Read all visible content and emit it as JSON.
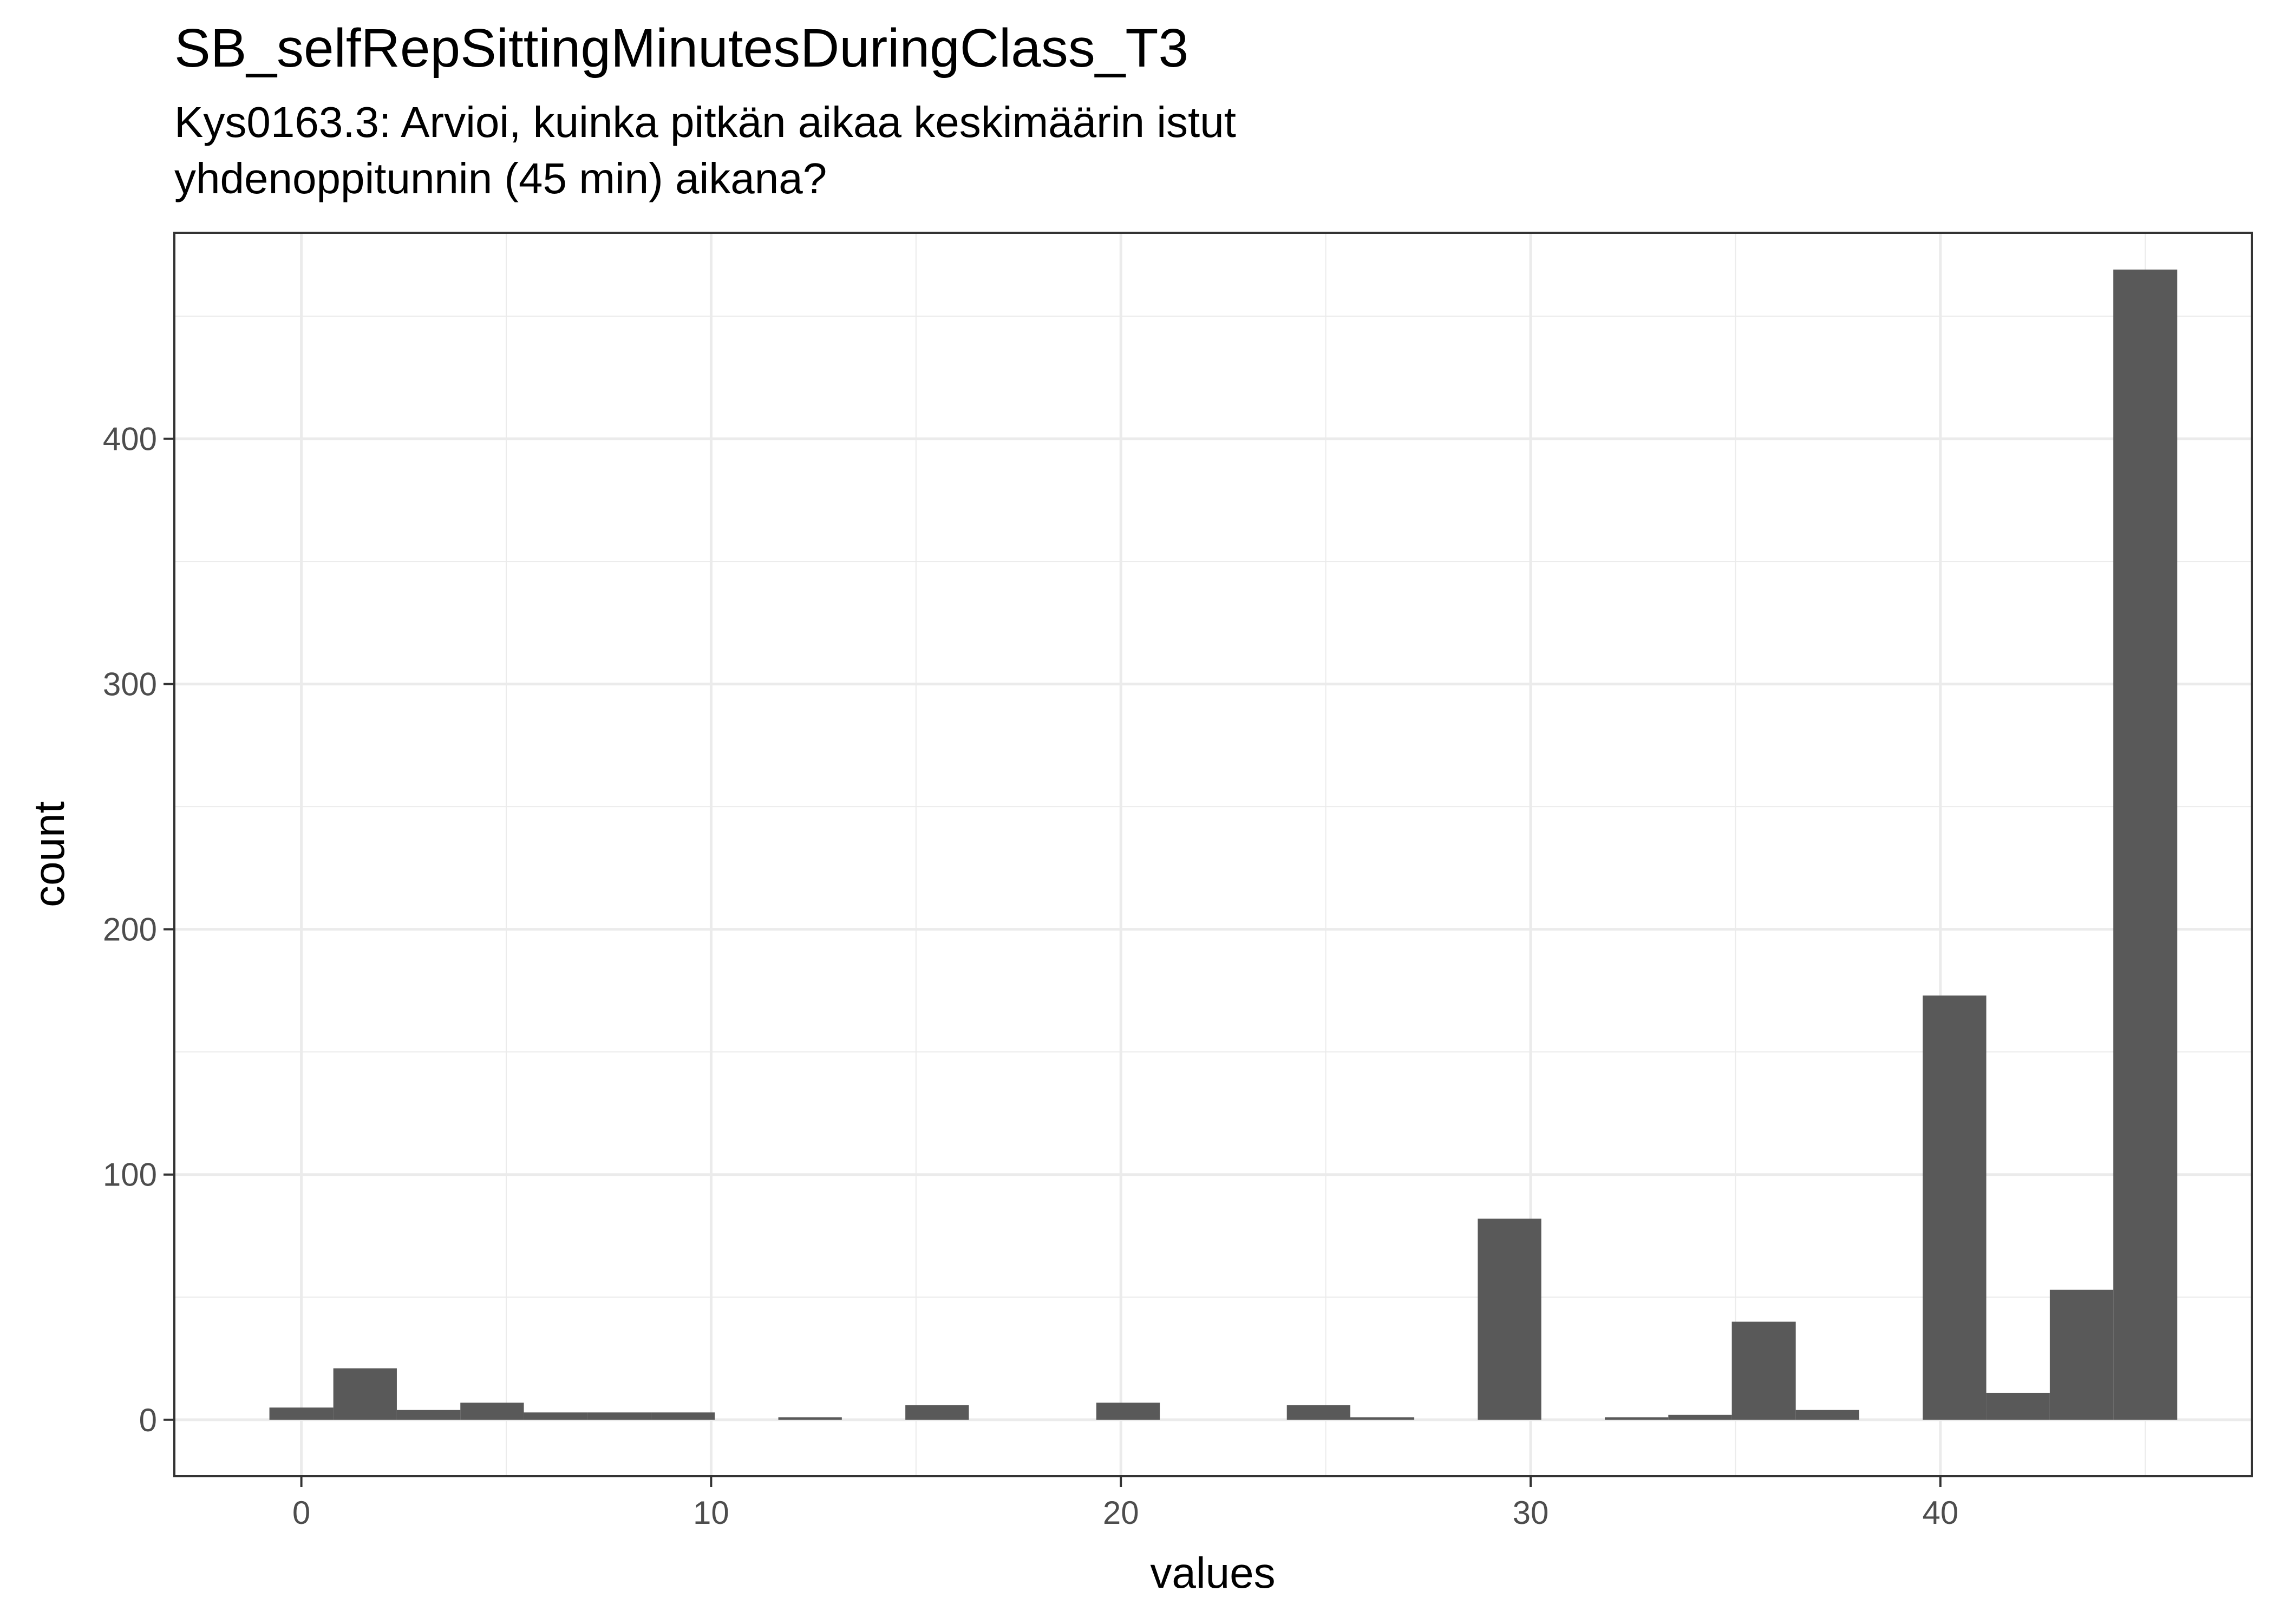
{
  "chart_data": {
    "type": "bar",
    "title": "SB_selfRepSittingMinutesDuringClass_T3",
    "subtitle_lines": [
      "Kys0163.3: Arvioi, kuinka pitkän aikaa keskimäärin istut",
      "yhdenoppitunnin (45 min) aikana?"
    ],
    "xlabel": "values",
    "ylabel": "count",
    "xlim": [
      -3.1,
      47.6
    ],
    "ylim": [
      -23,
      484
    ],
    "x_ticks": [
      0,
      10,
      20,
      30,
      40
    ],
    "y_ticks": [
      0,
      100,
      200,
      300,
      400
    ],
    "x_tick_labels": [
      "0",
      "10",
      "20",
      "30",
      "40"
    ],
    "y_tick_labels": [
      "0",
      "100",
      "200",
      "300",
      "400"
    ],
    "grid": true,
    "bar_color": "#595959",
    "bins": [
      {
        "x0": -0.78,
        "x1": 0.78,
        "count": 5
      },
      {
        "x0": 0.78,
        "x1": 2.33,
        "count": 21
      },
      {
        "x0": 2.33,
        "x1": 3.88,
        "count": 4
      },
      {
        "x0": 3.88,
        "x1": 5.43,
        "count": 7
      },
      {
        "x0": 5.43,
        "x1": 6.98,
        "count": 3
      },
      {
        "x0": 6.98,
        "x1": 8.53,
        "count": 3
      },
      {
        "x0": 8.53,
        "x1": 10.09,
        "count": 3
      },
      {
        "x0": 11.64,
        "x1": 13.19,
        "count": 1
      },
      {
        "x0": 14.74,
        "x1": 16.29,
        "count": 6
      },
      {
        "x0": 19.4,
        "x1": 20.95,
        "count": 7
      },
      {
        "x0": 24.05,
        "x1": 25.6,
        "count": 6
      },
      {
        "x0": 25.6,
        "x1": 27.16,
        "count": 1
      },
      {
        "x0": 28.71,
        "x1": 30.26,
        "count": 82
      },
      {
        "x0": 31.81,
        "x1": 33.36,
        "count": 1
      },
      {
        "x0": 33.36,
        "x1": 34.91,
        "count": 2
      },
      {
        "x0": 34.91,
        "x1": 36.47,
        "count": 40
      },
      {
        "x0": 36.47,
        "x1": 38.02,
        "count": 4
      },
      {
        "x0": 39.57,
        "x1": 41.12,
        "count": 173
      },
      {
        "x0": 41.12,
        "x1": 42.67,
        "count": 11
      },
      {
        "x0": 42.67,
        "x1": 44.22,
        "count": 53
      },
      {
        "x0": 44.22,
        "x1": 45.78,
        "count": 469
      }
    ]
  }
}
